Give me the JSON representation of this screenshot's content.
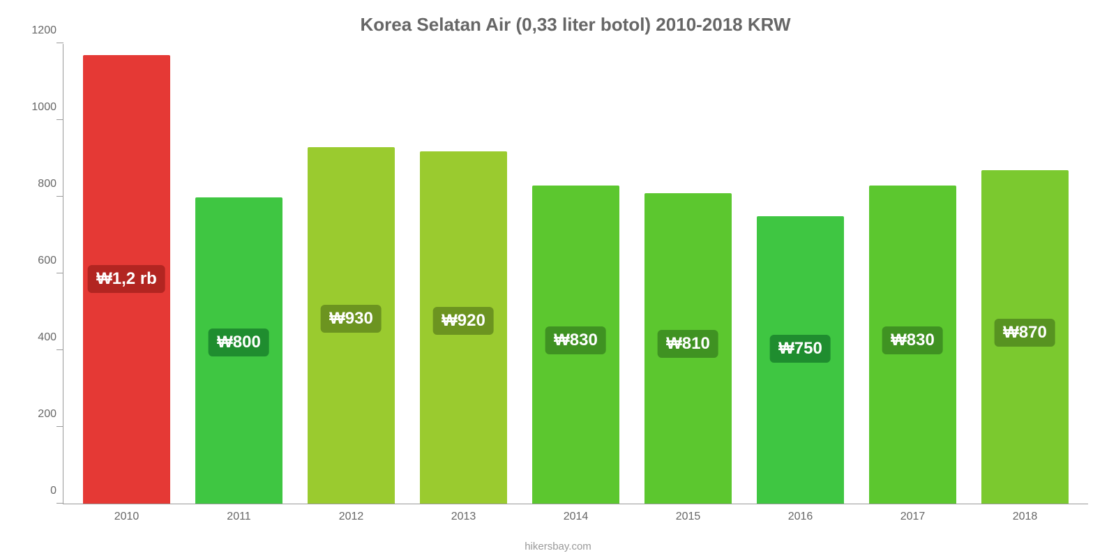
{
  "chart": {
    "type": "bar",
    "title": "Korea Selatan Air (0,33 liter botol) 2010-2018 KRW",
    "title_color": "#666666",
    "title_fontsize": 26,
    "background_color": "#ffffff",
    "axis_color": "#999999",
    "tick_label_color": "#666666",
    "tick_fontsize": 16,
    "footer": "hikersbay.com",
    "footer_color": "#999999",
    "y": {
      "min": 0,
      "max": 1200,
      "step": 200,
      "ticks": [
        0,
        200,
        400,
        600,
        800,
        1000,
        1200
      ]
    },
    "bar_width_pct": 78,
    "value_label_fontsize": 24,
    "value_label_text_color": "#ffffff",
    "data": [
      {
        "year": "2010",
        "value": 1170,
        "label": "₩1,2 rb",
        "bar_color": "#e53935",
        "label_bg": "#b22521",
        "label_bottom_pct": 47
      },
      {
        "year": "2011",
        "value": 800,
        "label": "₩800",
        "bar_color": "#3fc642",
        "label_bg": "#1f8d2f",
        "label_bottom_pct": 48
      },
      {
        "year": "2012",
        "value": 930,
        "label": "₩930",
        "bar_color": "#9acb2f",
        "label_bg": "#6c9420",
        "label_bottom_pct": 48
      },
      {
        "year": "2013",
        "value": 920,
        "label": "₩920",
        "bar_color": "#9acb2f",
        "label_bg": "#6c9420",
        "label_bottom_pct": 48
      },
      {
        "year": "2014",
        "value": 830,
        "label": "₩830",
        "bar_color": "#5cc72f",
        "label_bg": "#3f9222",
        "label_bottom_pct": 47
      },
      {
        "year": "2015",
        "value": 810,
        "label": "₩810",
        "bar_color": "#5cc72f",
        "label_bg": "#3f9222",
        "label_bottom_pct": 47
      },
      {
        "year": "2016",
        "value": 750,
        "label": "₩750",
        "bar_color": "#3fc642",
        "label_bg": "#1f8d2f",
        "label_bottom_pct": 49
      },
      {
        "year": "2017",
        "value": 830,
        "label": "₩830",
        "bar_color": "#5cc72f",
        "label_bg": "#3f9222",
        "label_bottom_pct": 47
      },
      {
        "year": "2018",
        "value": 870,
        "label": "₩870",
        "bar_color": "#7bc92f",
        "label_bg": "#579321",
        "label_bottom_pct": 47
      }
    ]
  }
}
